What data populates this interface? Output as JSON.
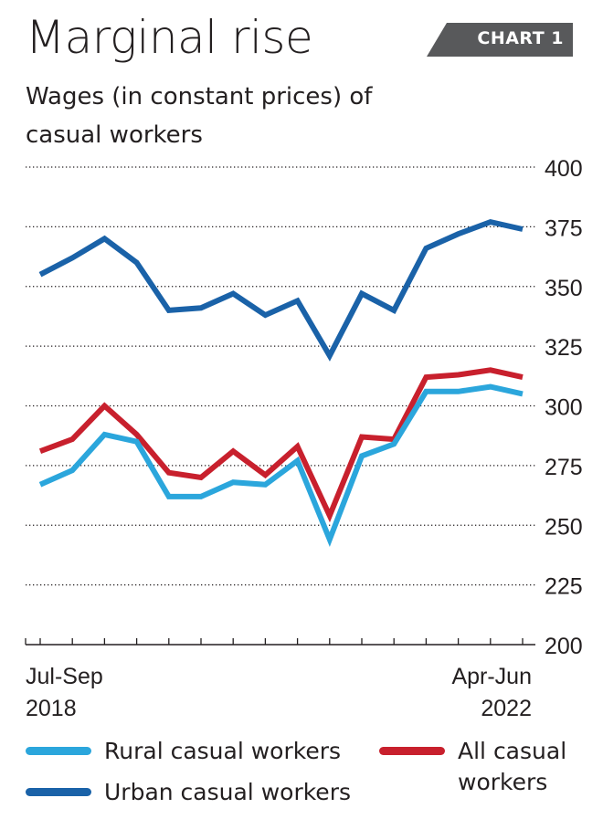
{
  "title": "Marginal rise",
  "badge": "CHART 1",
  "subtitle": "Wages (in constant prices) of casual workers",
  "colors": {
    "rural": "#2ba6dc",
    "urban": "#1a62a8",
    "all": "#c8202d",
    "badge_bg": "#58595b",
    "grid": "#231f20"
  },
  "chart_data": {
    "type": "line",
    "title": "Marginal rise",
    "subtitle": "Wages (in constant prices) of casual workers",
    "x_first_label": [
      "Jul-Sep",
      "2018"
    ],
    "x_last_label": [
      "Apr-Jun",
      "2022"
    ],
    "ylim": [
      200,
      400
    ],
    "yticks": [
      400,
      375,
      350,
      325,
      300,
      275,
      250,
      225,
      200
    ],
    "grid": "dotted horizontal",
    "legend_placement": "bottom",
    "series": [
      {
        "name": "Urban casual workers",
        "color": "#1a62a8",
        "values": [
          355,
          362,
          370,
          360,
          340,
          341,
          347,
          338,
          344,
          321,
          347,
          340,
          366,
          372,
          377,
          374
        ]
      },
      {
        "name": "All casual workers",
        "color": "#c8202d",
        "values": [
          281,
          286,
          300,
          288,
          272,
          270,
          281,
          271,
          283,
          254,
          287,
          286,
          312,
          313,
          315,
          312
        ]
      },
      {
        "name": "Rural casual workers",
        "color": "#2ba6dc",
        "values": [
          267,
          273,
          288,
          285,
          262,
          262,
          268,
          267,
          277,
          244,
          279,
          284,
          306,
          306,
          308,
          305
        ]
      }
    ]
  },
  "legend": [
    {
      "label": "Rural casual workers",
      "color": "#2ba6dc"
    },
    {
      "label": "Urban casual workers",
      "color": "#1a62a8"
    },
    {
      "label": "All casual workers",
      "color": "#c8202d"
    }
  ]
}
